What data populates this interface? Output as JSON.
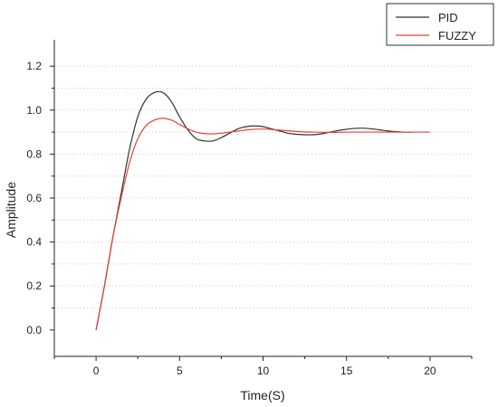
{
  "chart_data": {
    "type": "line",
    "title": "",
    "xlabel": "Time(S)",
    "ylabel": "Amplitude",
    "xlim": [
      -2.5,
      22.5
    ],
    "ylim": [
      -0.12,
      1.32
    ],
    "x_ticks": [
      0,
      5,
      10,
      15,
      20
    ],
    "x_tick_labels": [
      "0",
      "5",
      "10",
      "15",
      "20"
    ],
    "y_ticks": [
      0.0,
      0.2,
      0.4,
      0.6,
      0.8,
      1.0,
      1.2
    ],
    "y_tick_labels": [
      "0.0",
      "0.2",
      "0.4",
      "0.6",
      "0.8",
      "1.0",
      "1.2"
    ],
    "grid": "horizontal dotted",
    "legend_position": "top-right",
    "series": [
      {
        "name": "PID",
        "color": "#333333",
        "x": [
          0,
          0.5,
          1.0,
          1.5,
          2.0,
          2.5,
          3.0,
          3.5,
          4.0,
          4.5,
          5.0,
          5.5,
          6.0,
          6.5,
          7.0,
          7.5,
          8.0,
          8.5,
          9.0,
          9.5,
          10.0,
          10.5,
          11.0,
          11.5,
          12.0,
          12.5,
          13.0,
          13.5,
          14.0,
          14.5,
          15.0,
          15.5,
          16.0,
          16.5,
          17.0,
          17.5,
          18.0,
          18.5,
          19.0
        ],
        "y": [
          0.0,
          0.2,
          0.42,
          0.62,
          0.82,
          0.97,
          1.05,
          1.08,
          1.08,
          1.04,
          0.97,
          0.91,
          0.87,
          0.86,
          0.86,
          0.875,
          0.895,
          0.915,
          0.925,
          0.928,
          0.925,
          0.915,
          0.905,
          0.895,
          0.89,
          0.888,
          0.888,
          0.892,
          0.9,
          0.907,
          0.913,
          0.917,
          0.918,
          0.915,
          0.91,
          0.905,
          0.902,
          0.9,
          0.9
        ]
      },
      {
        "name": "FUZZY",
        "color": "#e8403a",
        "x": [
          0,
          0.5,
          1.0,
          1.5,
          2.0,
          2.5,
          3.0,
          3.5,
          4.0,
          4.5,
          5.0,
          5.5,
          6.0,
          6.5,
          7.0,
          7.5,
          8.0,
          8.5,
          9.0,
          9.5,
          10.0,
          10.5,
          11.0,
          11.5,
          12.0,
          12.5,
          13.0,
          13.5,
          14.0,
          14.5,
          15.0,
          15.5,
          16.0,
          16.5,
          17.0,
          17.5,
          18.0,
          18.5,
          19.0,
          19.5,
          20.0
        ],
        "y": [
          0.0,
          0.2,
          0.42,
          0.6,
          0.76,
          0.87,
          0.93,
          0.955,
          0.963,
          0.955,
          0.935,
          0.915,
          0.9,
          0.893,
          0.892,
          0.895,
          0.9,
          0.905,
          0.91,
          0.913,
          0.914,
          0.912,
          0.909,
          0.906,
          0.903,
          0.901,
          0.9,
          0.899,
          0.899,
          0.899,
          0.9,
          0.9,
          0.9,
          0.9,
          0.9,
          0.9,
          0.9,
          0.9,
          0.9,
          0.9,
          0.9
        ]
      }
    ]
  }
}
